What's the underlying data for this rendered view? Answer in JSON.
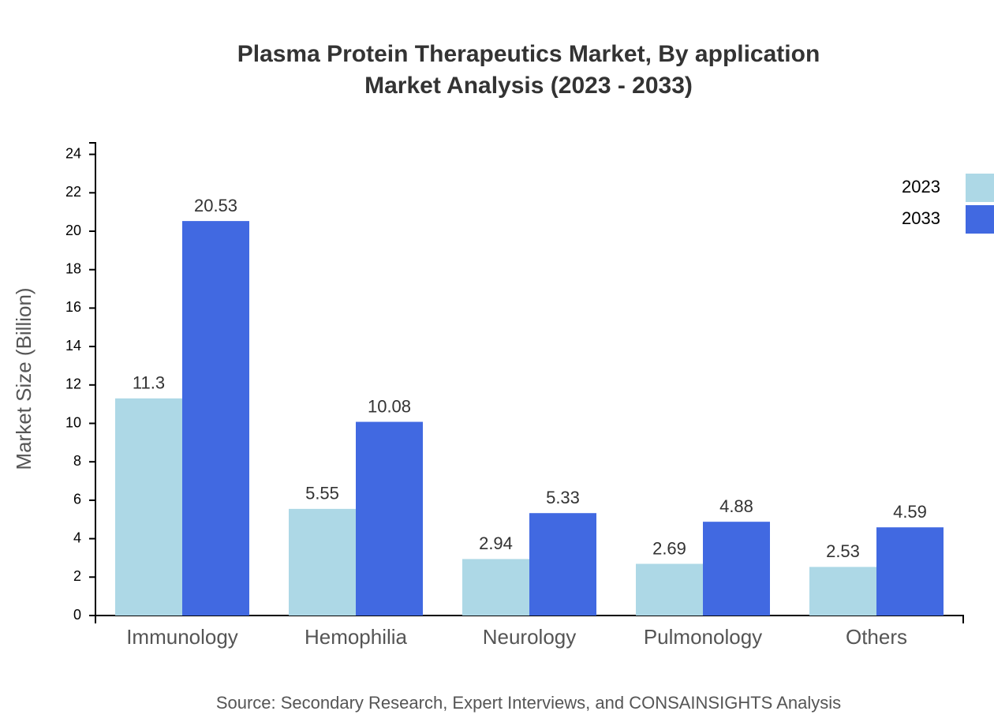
{
  "chart_data": {
    "type": "bar",
    "title": "Plasma Protein Therapeutics Market, By application",
    "subtitle": "Market Analysis (2023 - 2033)",
    "y_label": "Market Size (Billion)",
    "source": "Source: Secondary Research, Expert Interviews, and CONSAINSIGHTS Analysis",
    "categories": [
      "Immunology",
      "Hemophilia",
      "Neurology",
      "Pulmonology",
      "Others"
    ],
    "series": [
      {
        "name": "2023",
        "color": "#add8e6",
        "values": [
          11.3,
          5.55,
          2.94,
          2.69,
          2.53
        ]
      },
      {
        "name": "2033",
        "color": "#4169e1",
        "values": [
          20.53,
          10.08,
          5.33,
          4.88,
          4.59
        ]
      }
    ],
    "ylim": [
      0,
      24.6
    ],
    "yticks": [
      0,
      2,
      4,
      6,
      8,
      10,
      12,
      14,
      16,
      18,
      20,
      22,
      24
    ],
    "legend": "top-right"
  }
}
